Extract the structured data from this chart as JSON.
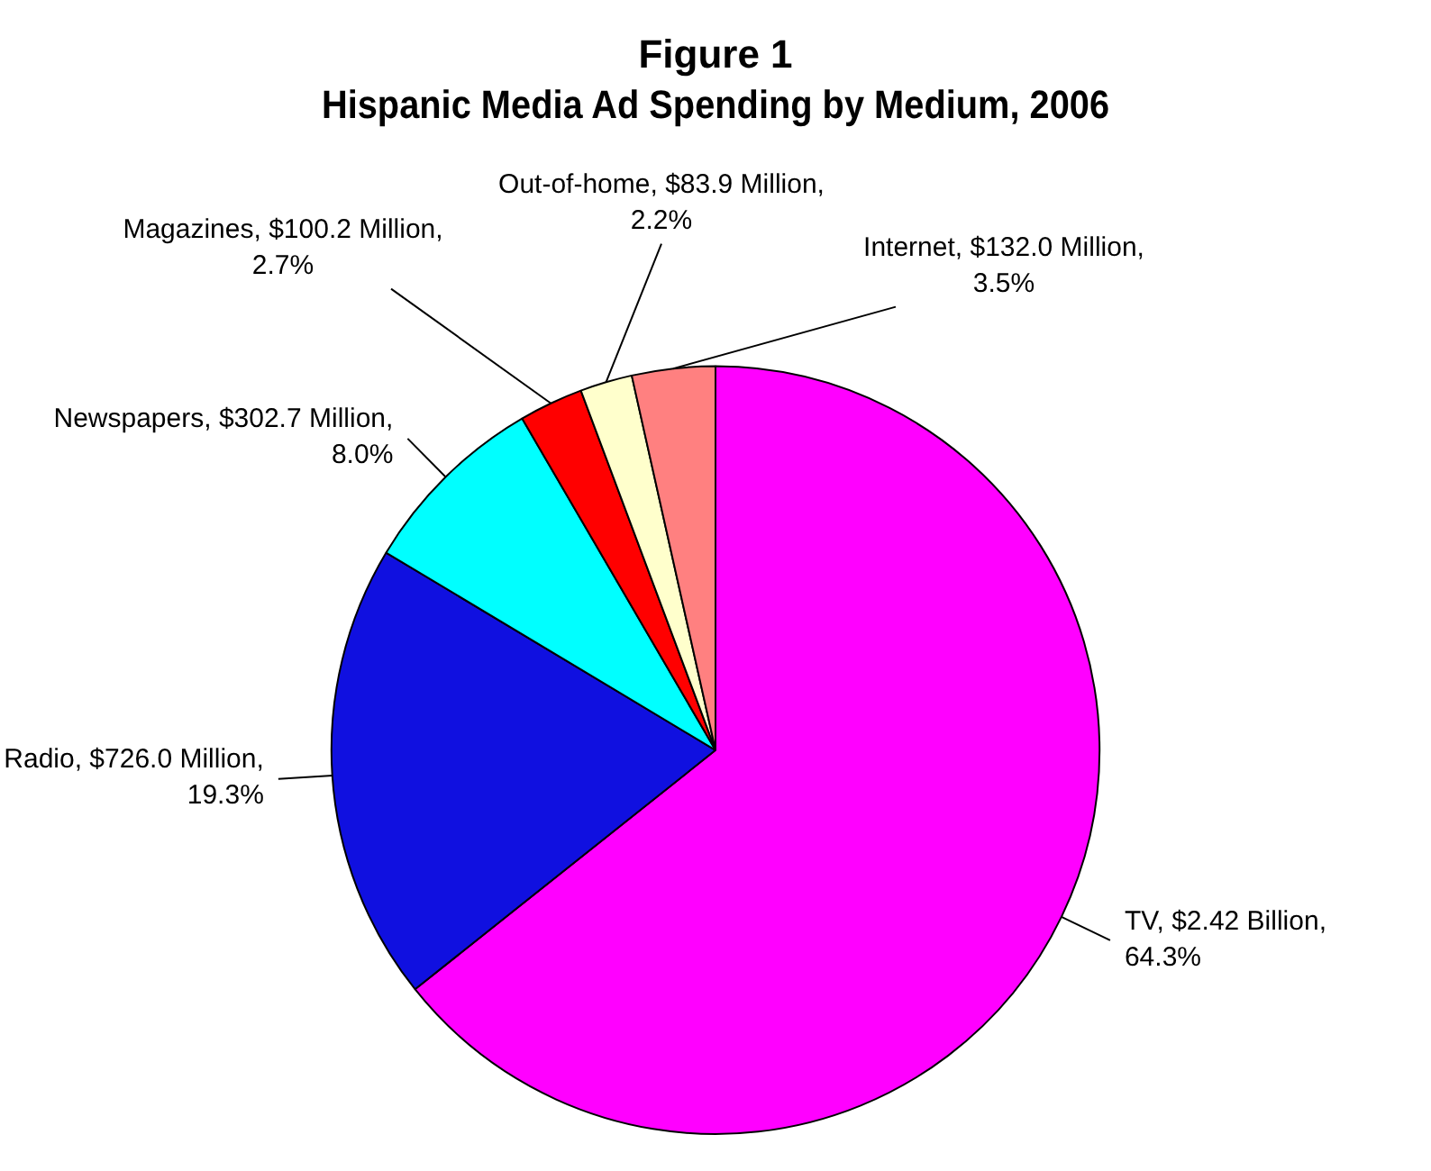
{
  "chart_data": {
    "type": "pie",
    "title": "Figure 1",
    "subtitle": "Hispanic Media Ad Spending by Medium, 2006",
    "categories": [
      "TV",
      "Radio",
      "Newspapers",
      "Magazines",
      "Out-of-home",
      "Internet"
    ],
    "values": [
      64.3,
      19.3,
      8.0,
      2.7,
      2.2,
      3.5
    ],
    "colors": [
      "#ff00ff",
      "#1010e0",
      "#00ffff",
      "#ff0000",
      "#ffffcc",
      "#ff8080"
    ],
    "value_labels": [
      "$2.42 Billion, 64.3%",
      "$726.0 Million, 19.3%",
      "$302.7 Million, 8.0%",
      "$100.2 Million, 2.7%",
      "$83.9 Million, 2.2%",
      "$132.0 Million, 3.5%"
    ],
    "legend": false
  }
}
